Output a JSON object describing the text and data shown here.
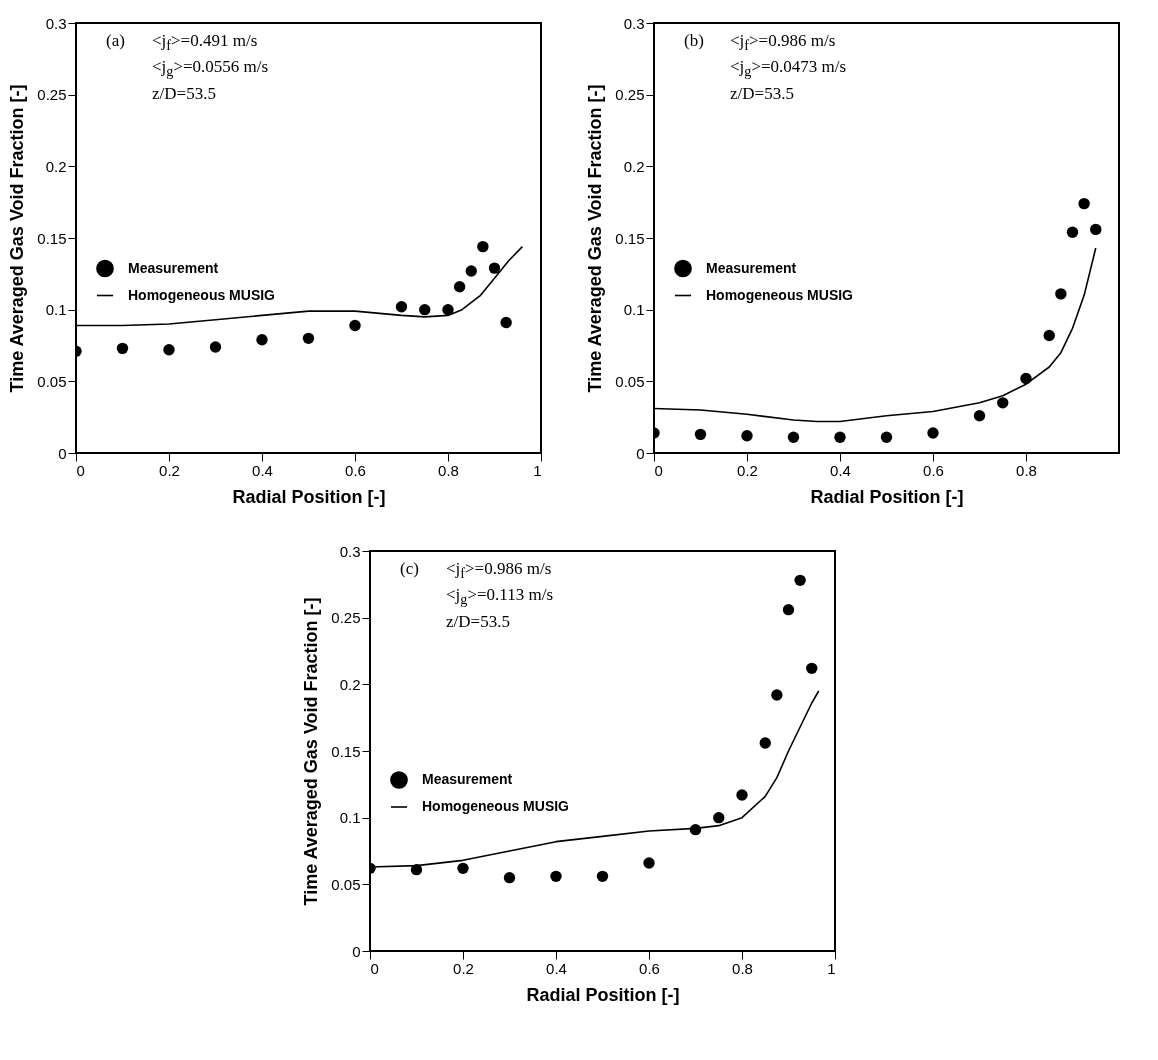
{
  "chart_data": [
    {
      "type": "scatter",
      "xlabel": "Radial Position [-]",
      "ylabel": "Time Averaged Gas Void Fraction [-]",
      "xlim": [
        0,
        1
      ],
      "xticks": [
        0,
        0.2,
        0.4,
        0.6,
        0.8,
        1
      ],
      "ylim": [
        0,
        0.3
      ],
      "yticks": [
        0,
        0.05,
        0.1,
        0.15,
        0.2,
        0.25,
        0.3
      ],
      "legend": "left",
      "annotations": [
        "(a)",
        "<j$_{f}$>=0.491 m/s",
        "<j$_{g}$>=0.0556 m/s",
        "z/D=53.5"
      ],
      "series": [
        {
          "name": "Measurement",
          "type": "scatter",
          "marker": "circle",
          "color": "#000000",
          "x": [
            0,
            0.1,
            0.2,
            0.3,
            0.4,
            0.5,
            0.6,
            0.7,
            0.75,
            0.8,
            0.825,
            0.85,
            0.875,
            0.9,
            0.925
          ],
          "values": [
            0.071,
            0.073,
            0.072,
            0.074,
            0.079,
            0.08,
            0.089,
            0.102,
            0.1,
            0.1,
            0.116,
            0.127,
            0.144,
            0.129,
            0.091
          ]
        },
        {
          "name": "Homogeneous MUSIG",
          "type": "line",
          "color": "#000000",
          "x": [
            0,
            0.1,
            0.2,
            0.3,
            0.4,
            0.5,
            0.55,
            0.6,
            0.7,
            0.75,
            0.8,
            0.83,
            0.87,
            0.9,
            0.93,
            0.96
          ],
          "values": [
            0.089,
            0.089,
            0.09,
            0.093,
            0.096,
            0.099,
            0.099,
            0.099,
            0.096,
            0.095,
            0.096,
            0.1,
            0.11,
            0.122,
            0.134,
            0.144
          ]
        }
      ]
    },
    {
      "type": "scatter",
      "xlabel": "Radial Position [-]",
      "ylabel": "Time Averaged Gas Void Fraction [-]",
      "xlim": [
        0,
        1
      ],
      "xticks": [
        0,
        0.2,
        0.4,
        0.6,
        0.8
      ],
      "ylim": [
        0,
        0.3
      ],
      "yticks": [
        0,
        0.05,
        0.1,
        0.15,
        0.2,
        0.25,
        0.3
      ],
      "legend": "left",
      "annotations": [
        "(b)",
        "<j$_{f}$>=0.986 m/s",
        "<j$_{g}$>=0.0473 m/s",
        "z/D=53.5"
      ],
      "series": [
        {
          "name": "Measurement",
          "type": "scatter",
          "marker": "circle",
          "color": "#000000",
          "x": [
            0,
            0.1,
            0.2,
            0.3,
            0.4,
            0.5,
            0.6,
            0.7,
            0.75,
            0.8,
            0.85,
            0.875,
            0.9,
            0.925,
            0.95
          ],
          "values": [
            0.014,
            0.013,
            0.012,
            0.011,
            0.011,
            0.011,
            0.014,
            0.026,
            0.035,
            0.052,
            0.082,
            0.111,
            0.154,
            0.174,
            0.156
          ]
        },
        {
          "name": "Homogeneous MUSIG",
          "type": "line",
          "color": "#000000",
          "x": [
            0,
            0.1,
            0.2,
            0.3,
            0.35,
            0.4,
            0.5,
            0.6,
            0.7,
            0.75,
            0.8,
            0.85,
            0.875,
            0.9,
            0.925,
            0.95
          ],
          "values": [
            0.031,
            0.03,
            0.027,
            0.023,
            0.022,
            0.022,
            0.026,
            0.029,
            0.035,
            0.04,
            0.048,
            0.06,
            0.07,
            0.087,
            0.11,
            0.143
          ]
        }
      ]
    },
    {
      "type": "scatter",
      "xlabel": "Radial Position [-]",
      "ylabel": "Time Averaged Gas Void Fraction [-]",
      "xlim": [
        0,
        1
      ],
      "xticks": [
        0,
        0.2,
        0.4,
        0.6,
        0.8,
        1
      ],
      "ylim": [
        0,
        0.3
      ],
      "yticks": [
        0,
        0.05,
        0.1,
        0.15,
        0.2,
        0.25,
        0.3
      ],
      "legend": "left",
      "annotations": [
        "(c)",
        "<j$_{f}$>=0.986 m/s",
        "<j$_{g}$>=0.113 m/s",
        "z/D=53.5"
      ],
      "series": [
        {
          "name": "Measurement",
          "type": "scatter",
          "marker": "circle",
          "color": "#000000",
          "x": [
            0,
            0.1,
            0.2,
            0.3,
            0.4,
            0.5,
            0.6,
            0.7,
            0.75,
            0.8,
            0.85,
            0.875,
            0.9,
            0.925,
            0.95
          ],
          "values": [
            0.062,
            0.061,
            0.062,
            0.055,
            0.056,
            0.056,
            0.066,
            0.091,
            0.1,
            0.117,
            0.156,
            0.192,
            0.256,
            0.278,
            0.212
          ]
        },
        {
          "name": "Homogeneous MUSIG",
          "type": "line",
          "color": "#000000",
          "x": [
            0,
            0.1,
            0.2,
            0.3,
            0.4,
            0.5,
            0.6,
            0.7,
            0.75,
            0.8,
            0.85,
            0.875,
            0.9,
            0.925,
            0.95,
            0.965
          ],
          "values": [
            0.063,
            0.064,
            0.068,
            0.075,
            0.082,
            0.086,
            0.09,
            0.092,
            0.094,
            0.1,
            0.116,
            0.13,
            0.15,
            0.168,
            0.186,
            0.195
          ]
        }
      ]
    }
  ]
}
